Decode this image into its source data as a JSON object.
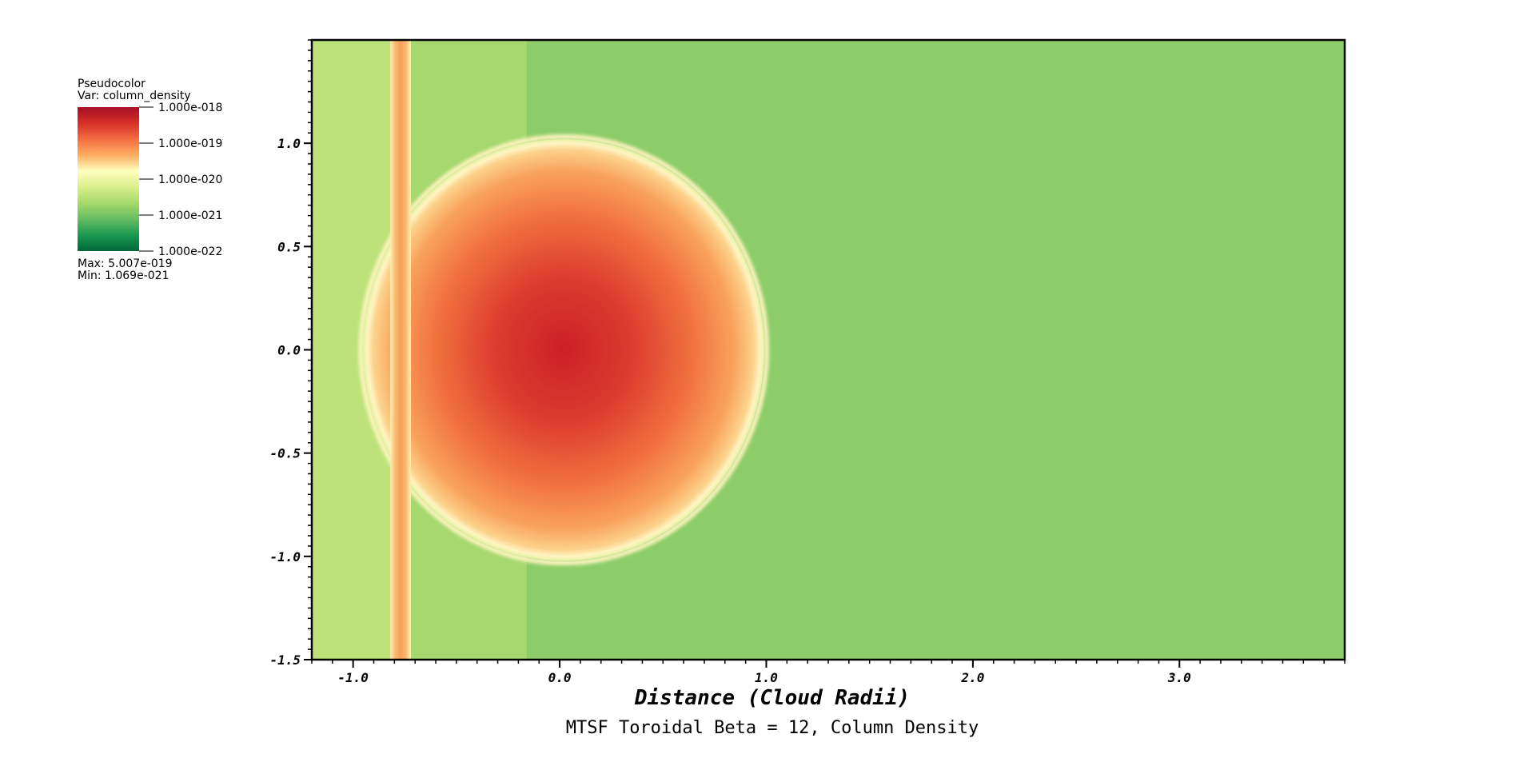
{
  "chart_data": {
    "type": "heatmap",
    "title": "MTSF Toroidal Beta = 12, Column Density",
    "xlabel": "Distance (Cloud Radii)",
    "ylabel": "",
    "xlim": [
      -1.2,
      3.8
    ],
    "ylim": [
      -1.5,
      1.5
    ],
    "x_ticks": [
      "-1.0",
      "0.0",
      "1.0",
      "2.0",
      "3.0"
    ],
    "x_tick_values": [
      -1.0,
      0.0,
      1.0,
      2.0,
      3.0
    ],
    "y_ticks": [
      "1.0",
      "0.5",
      "0.0",
      "-0.5",
      "-1.0",
      "-1.5"
    ],
    "y_tick_values": [
      1.0,
      0.5,
      0.0,
      -0.5,
      -1.0,
      -1.5
    ],
    "color_scale": "log",
    "colors": {
      "background_far": "#8ccd69",
      "background_mid": "#a6d86f",
      "background_near": "#bde27a",
      "cloud_core": "#cf2a28",
      "cloud_mid": "#f2763f",
      "cloud_edge": "#fbbd75",
      "rim": "#fff5bf",
      "front_line": "#f6a55c"
    },
    "features": {
      "cloud_center": [
        0.02,
        0.0
      ],
      "cloud_radius_x": 0.97,
      "cloud_radius_y": 1.02,
      "front_x_range": [
        -0.82,
        -0.72
      ],
      "region_boundary_x": -0.16
    }
  },
  "legend": {
    "title": "Pseudocolor",
    "var": "Var: column_density",
    "labels": [
      "1.000e-018",
      "1.000e-019",
      "1.000e-020",
      "1.000e-021",
      "1.000e-022"
    ],
    "max": "Max:  5.007e-019",
    "min": "Min:  1.069e-021",
    "stops": [
      "#a50f26",
      "#d73027",
      "#f46d43",
      "#fdae61",
      "#ffffbf",
      "#d9ef8b",
      "#a6d96a",
      "#66bd63",
      "#1a9850",
      "#006837"
    ]
  }
}
